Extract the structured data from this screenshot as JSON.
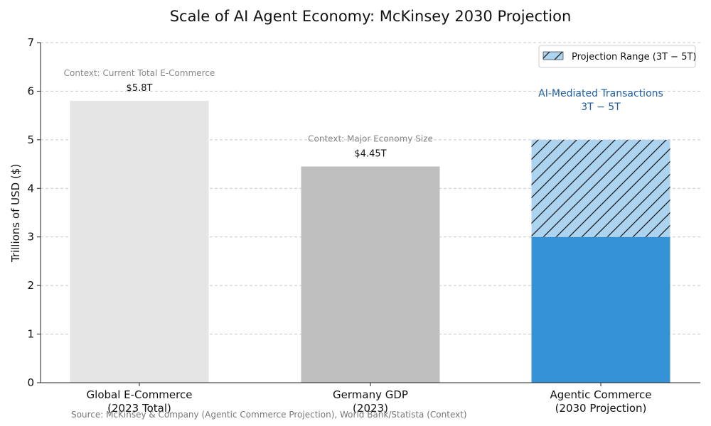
{
  "chart_data": {
    "type": "bar",
    "title": "Scale of AI Agent Economy: McKinsey 2030 Projection",
    "ylabel": "Trillions of USD ($)",
    "xlabel": "",
    "ylim": [
      0,
      7
    ],
    "yticks": [
      "0",
      "1",
      "2",
      "3",
      "4",
      "5",
      "6",
      "7"
    ],
    "grid": "horizontal dashed",
    "categories": [
      [
        "Global E-Commerce",
        "(2023 Total)"
      ],
      [
        "Germany GDP",
        "(2023)"
      ],
      [
        "Agentic Commerce",
        "(2030 Projection)"
      ]
    ],
    "bars": [
      {
        "category": "Global E-Commerce (2023 Total)",
        "value": 5.8,
        "label": "$5.8T",
        "context": "Context: Current Total E-Commerce",
        "color": "#e5e5e5"
      },
      {
        "category": "Germany GDP (2023)",
        "value": 4.45,
        "label": "$4.45T",
        "context": "Context: Major Economy Size",
        "color": "#bfbfbf"
      },
      {
        "category": "Agentic Commerce (2030 Projection)",
        "base_value": 3,
        "range": [
          3,
          5
        ],
        "color": "#3492d6",
        "range_color": "#acd4f0",
        "annotation": [
          "AI-Mediated Transactions",
          "3T − 5T"
        ],
        "annotation_color": "#1f5fa0"
      }
    ],
    "legend": {
      "position": "top-right",
      "entries": [
        {
          "label": "Projection Range (3T − 5T)",
          "style": "hatched"
        }
      ]
    },
    "source": "Source: McKinsey & Company (Agentic Commerce Projection), World Bank/Statista (Context)"
  }
}
